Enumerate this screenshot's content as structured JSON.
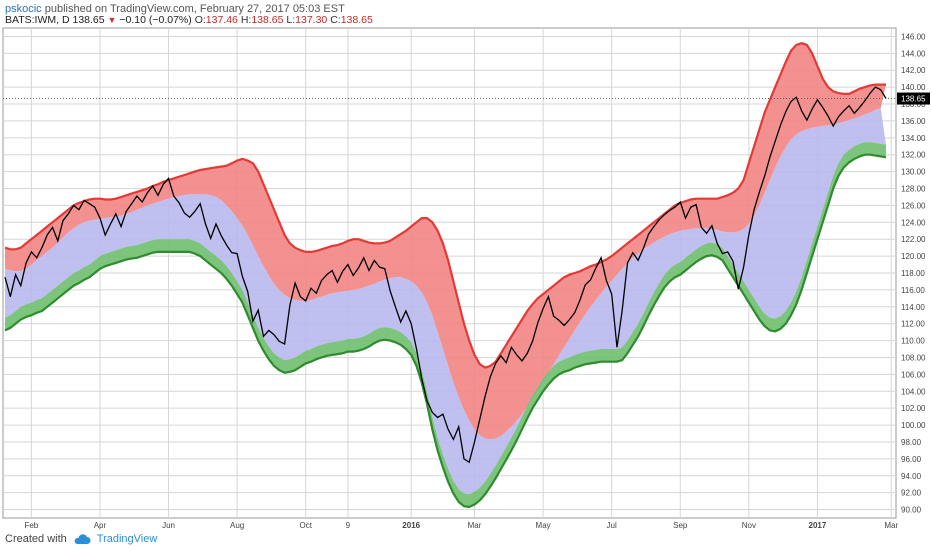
{
  "header": {
    "publisher": "pskocic",
    "published_text": "published on TradingView.com, February 27, 2017 05:03 EST",
    "symbol": "BATS:IWM, D",
    "last": "138.65",
    "change": "−0.10 (−0.07%)",
    "open_label": "O:",
    "open": "137.46",
    "high_label": "H:",
    "high": "138.65",
    "low_label": "L:",
    "low": "137.30",
    "close_label": "C:",
    "close": "138.65"
  },
  "footer": {
    "created_with": "Created with",
    "brand": "TradingView"
  },
  "colors": {
    "upper_band": "#f28585",
    "middle_band": "#b8b8ee",
    "lower_band": "#6fbf6f",
    "upper_line": "#e53935",
    "lower_line": "#2e8b2e",
    "price": "#000000",
    "last_price_tag": "#000000"
  },
  "chart_data": {
    "type": "line",
    "symbol": "BATS:IWM, D",
    "ylim": [
      89,
      147
    ],
    "y_ticks": [
      90,
      92,
      94,
      96,
      98,
      100,
      102,
      104,
      106,
      108,
      110,
      112,
      114,
      116,
      118,
      120,
      122,
      124,
      126,
      128,
      130,
      132,
      134,
      136,
      138,
      140,
      142,
      144,
      146
    ],
    "x_tick_labels": [
      "Feb",
      "Apr",
      "Jun",
      "Aug",
      "Oct",
      "9",
      "2016",
      "Mar",
      "May",
      "Jul",
      "Sep",
      "Nov",
      "2017",
      "Mar"
    ],
    "x_tick_index": [
      5,
      18,
      31,
      44,
      57,
      65,
      77,
      89,
      102,
      115,
      128,
      141,
      154,
      168
    ],
    "last_price_label": "138.65",
    "grid": true,
    "series": [
      {
        "role": "upper_band",
        "values": [
          121,
          120.8,
          120.8,
          121,
          121.5,
          122,
          122.5,
          123,
          123.5,
          124,
          124.5,
          125,
          125.5,
          126,
          126.3,
          126.5,
          126.7,
          126.8,
          126.8,
          126.7,
          126.7,
          126.8,
          127,
          127.2,
          127.4,
          127.6,
          127.8,
          128,
          128.3,
          128.5,
          128.8,
          129,
          129.2,
          129.4,
          129.6,
          129.8,
          130,
          130.2,
          130.3,
          130.4,
          130.5,
          130.6,
          130.7,
          131,
          131.3,
          131.5,
          131.3,
          131,
          130,
          128.5,
          127,
          125.5,
          124,
          122.5,
          121.5,
          121,
          120.7,
          120.5,
          120.5,
          120.6,
          120.8,
          121,
          121.2,
          121.3,
          121.5,
          121.8,
          122,
          122,
          121.8,
          121.6,
          121.5,
          121.5,
          121.6,
          121.8,
          122.2,
          122.6,
          123,
          123.5,
          124,
          124.5,
          124.5,
          124,
          123,
          121.5,
          119.5,
          117,
          114.5,
          112,
          110,
          108.3,
          107.2,
          106.8,
          107,
          107.5,
          108.5,
          109.5,
          110.5,
          111.5,
          112.5,
          113.5,
          114.3,
          115,
          115.5,
          116,
          116.5,
          117,
          117.5,
          117.8,
          118,
          118.2,
          118.5,
          118.8,
          119,
          119.3,
          119.6,
          120,
          120.5,
          121,
          121.5,
          122,
          122.5,
          123,
          123.5,
          124,
          124.5,
          125,
          125.5,
          126,
          126.3,
          126.5,
          126.7,
          126.8,
          126.8,
          126.8,
          126.8,
          126.8,
          127,
          127.2,
          127.5,
          128,
          129,
          131,
          133,
          135,
          137,
          138.5,
          140,
          141.5,
          143,
          144.3,
          145,
          145.2,
          145,
          144,
          142.5,
          141,
          140,
          139.5,
          139.3,
          139.2,
          139.2,
          139.5,
          139.8,
          140,
          140.2,
          140.3,
          140.3,
          140.3
        ]
      },
      {
        "role": "middle_band",
        "values": [
          118.5,
          118.3,
          118.2,
          118.2,
          118.5,
          119,
          119.5,
          120,
          120.5,
          121,
          121.6,
          122.2,
          122.8,
          123.3,
          123.7,
          124,
          124.2,
          124.3,
          124.4,
          124.5,
          124.6,
          124.7,
          124.8,
          125,
          125.2,
          125.5,
          125.7,
          126,
          126.2,
          126.4,
          126.6,
          126.8,
          127,
          127.1,
          127.2,
          127.3,
          127.3,
          127.3,
          127.3,
          127.2,
          127,
          126.6,
          126,
          125.3,
          124.5,
          123.6,
          122.5,
          121.3,
          120,
          118.8,
          117.7,
          116.7,
          116,
          115.4,
          115,
          114.8,
          114.7,
          114.7,
          114.8,
          115,
          115.2,
          115.4,
          115.6,
          115.7,
          115.8,
          115.9,
          116,
          116.1,
          116.3,
          116.5,
          116.7,
          117,
          117.2,
          117.4,
          117.5,
          117.5,
          117.3,
          117,
          116.5,
          115.7,
          114.5,
          113,
          111,
          109,
          107,
          105,
          103.3,
          101.8,
          100.5,
          99.5,
          98.8,
          98.4,
          98.3,
          98.4,
          98.7,
          99.2,
          99.8,
          100.5,
          101.3,
          102.2,
          103.2,
          104.2,
          105.2,
          106.2,
          107.2,
          108.2,
          109.2,
          110.2,
          111.2,
          112.2,
          113.1,
          114,
          114.8,
          115.6,
          116.4,
          117.1,
          117.8,
          118.5,
          119.2,
          119.8,
          120.3,
          120.8,
          121.2,
          121.6,
          122,
          122.3,
          122.6,
          122.8,
          123,
          123.1,
          123.2,
          123.3,
          123.3,
          123.3,
          123.2,
          123.1,
          122.9,
          122.8,
          122.8,
          122.9,
          123.2,
          123.8,
          124.8,
          126,
          127.5,
          129,
          130.5,
          131.8,
          132.9,
          133.8,
          134.4,
          134.8,
          135,
          135.2,
          135.3,
          135.4,
          135.5,
          135.6,
          135.7,
          135.9,
          136.1,
          136.3,
          136.5,
          136.8,
          137,
          137.3,
          137.5
        ]
      },
      {
        "role": "lower_band",
        "values": [
          112.7,
          113,
          113.5,
          114,
          114.3,
          114.5,
          114.8,
          115,
          115.5,
          116,
          116.5,
          117,
          117.5,
          118,
          118.3,
          118.7,
          119,
          119.5,
          120,
          120.3,
          120.5,
          120.7,
          120.9,
          121.1,
          121.2,
          121.3,
          121.5,
          121.7,
          121.9,
          122,
          122,
          122,
          122,
          122,
          122,
          122,
          121.8,
          121.5,
          121,
          120.5,
          120,
          119.5,
          118.8,
          118,
          117,
          116,
          114.5,
          113,
          111.5,
          110.3,
          109.3,
          108.5,
          108,
          107.7,
          107.8,
          108,
          108.4,
          108.8,
          109,
          109.3,
          109.5,
          109.7,
          109.8,
          109.9,
          110,
          110.2,
          110.2,
          110.3,
          110.5,
          110.8,
          111.2,
          111.5,
          111.6,
          111.5,
          111.3,
          111,
          110.5,
          109.8,
          108.5,
          106.5,
          104,
          101,
          98.5,
          96.5,
          94.8,
          93.4,
          92.4,
          91.9,
          91.8,
          92.1,
          92.6,
          93.3,
          94.2,
          95.2,
          96.3,
          97.4,
          98.5,
          99.7,
          101,
          102.3,
          103.5,
          104.5,
          105.5,
          106.3,
          107,
          107.5,
          107.8,
          108,
          108.3,
          108.5,
          108.7,
          108.8,
          108.9,
          109,
          109,
          109,
          109,
          109.2,
          110,
          111,
          112,
          113.2,
          114.5,
          115.7,
          116.8,
          117.8,
          118.5,
          119,
          119.3,
          119.8,
          120.3,
          120.8,
          121.2,
          121.5,
          121.6,
          121.4,
          121,
          120,
          119,
          118,
          117,
          116,
          115,
          114,
          113.2,
          112.7,
          112.6,
          112.9,
          113.5,
          114.5,
          115.8,
          117.5,
          119.5,
          121.5,
          123.5,
          125.5,
          127.5,
          129.5,
          131,
          132,
          132.6,
          133,
          133.3,
          133.5,
          133.5,
          133.4,
          133.3,
          133.2
        ]
      },
      {
        "role": "price",
        "values": [
          117.5,
          115.2,
          117.8,
          116.5,
          119.2,
          120.5,
          119.8,
          121,
          122.5,
          123.4,
          121.8,
          124.2,
          125,
          126,
          125.5,
          126.6,
          126.2,
          125.8,
          124.5,
          122.5,
          123.8,
          125,
          123.5,
          125.3,
          126.2,
          127.1,
          126.4,
          127.5,
          128.3,
          127.2,
          128.5,
          129.2,
          127.1,
          126.3,
          125.1,
          124.6,
          125.3,
          126.2,
          123.8,
          122.1,
          123.8,
          122.4,
          121.3,
          120.4,
          120.3,
          117.6,
          115.8,
          112.3,
          113.6,
          110.5,
          111.2,
          110.7,
          109.9,
          109.6,
          114.2,
          116.8,
          115.2,
          114.7,
          116.2,
          115.6,
          117.1,
          117.8,
          118.3,
          116.9,
          118.2,
          119,
          117.7,
          118.6,
          119.8,
          118.3,
          119.5,
          118.7,
          118.5,
          115.9,
          114,
          112.2,
          113.5,
          112,
          109,
          105.5,
          102.9,
          101.5,
          100.9,
          101.3,
          99.5,
          98.3,
          99.8,
          96,
          95.6,
          98,
          100.7,
          103.4,
          105.7,
          107.3,
          108.2,
          107.4,
          109.2,
          108.3,
          107.6,
          108.5,
          109.9,
          112.1,
          113.8,
          115.2,
          112.9,
          112.4,
          111.8,
          112.5,
          113.3,
          114.8,
          116.6,
          117.2,
          118.6,
          119.8,
          117.1,
          115.5,
          109.2,
          113.6,
          119.2,
          120.4,
          119.5,
          120.9,
          122.6,
          123.5,
          124.3,
          124.9,
          125.4,
          125.8,
          126.4,
          124.5,
          125.8,
          126.1,
          123.4,
          122.7,
          123.6,
          121.5,
          120.3,
          120.5,
          119.4,
          116.1,
          118.7,
          122.5,
          125.5,
          127.6,
          129.5,
          131.7,
          133.6,
          135.5,
          137.1,
          138.3,
          138.8,
          137.2,
          136.1,
          137.4,
          138.5,
          137.6,
          136.6,
          135.4,
          136.5,
          137.2,
          137.8,
          136.9,
          137.6,
          138.4,
          139.3,
          140,
          139.7,
          138.65
        ]
      }
    ]
  }
}
